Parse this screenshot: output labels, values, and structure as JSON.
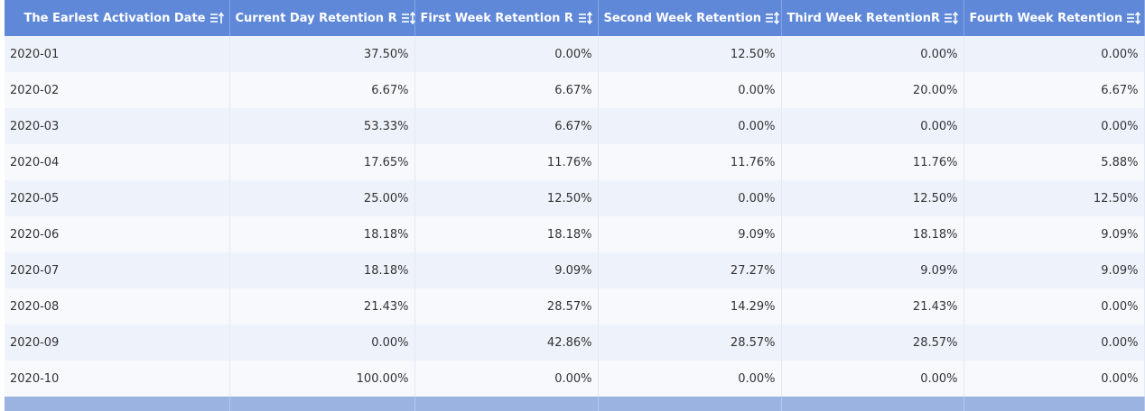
{
  "table": {
    "columns": [
      "The Earlest Activation Date",
      "Current Day Retention R",
      "First Week Retention R",
      "Second Week Retention",
      "Third Week RetentionR",
      "Fourth Week Retention"
    ],
    "rows": [
      [
        "2020-01",
        "37.50%",
        "0.00%",
        "12.50%",
        "0.00%",
        "0.00%"
      ],
      [
        "2020-02",
        "6.67%",
        "6.67%",
        "0.00%",
        "20.00%",
        "6.67%"
      ],
      [
        "2020-03",
        "53.33%",
        "6.67%",
        "0.00%",
        "0.00%",
        "0.00%"
      ],
      [
        "2020-04",
        "17.65%",
        "11.76%",
        "11.76%",
        "11.76%",
        "5.88%"
      ],
      [
        "2020-05",
        "25.00%",
        "12.50%",
        "0.00%",
        "12.50%",
        "12.50%"
      ],
      [
        "2020-06",
        "18.18%",
        "18.18%",
        "9.09%",
        "18.18%",
        "9.09%"
      ],
      [
        "2020-07",
        "18.18%",
        "9.09%",
        "27.27%",
        "9.09%",
        "9.09%"
      ],
      [
        "2020-08",
        "21.43%",
        "28.57%",
        "14.29%",
        "21.43%",
        "0.00%"
      ],
      [
        "2020-09",
        "0.00%",
        "42.86%",
        "28.57%",
        "28.57%",
        "0.00%"
      ],
      [
        "2020-10",
        "100.00%",
        "0.00%",
        "0.00%",
        "0.00%",
        "0.00%"
      ]
    ]
  }
}
